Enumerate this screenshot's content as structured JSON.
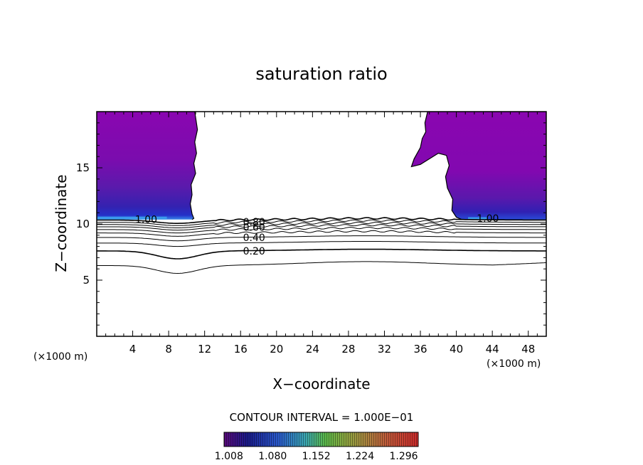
{
  "chart_data": {
    "type": "heatmap",
    "title": "saturation ratio",
    "xlabel": "X−coordinate",
    "ylabel": "Z−coordinate",
    "x_unit": "(×1000 m)",
    "y_unit": "(×1000 m)",
    "xlim": [
      0,
      50
    ],
    "ylim": [
      0,
      20
    ],
    "x_ticks": [
      4,
      8,
      12,
      16,
      20,
      24,
      28,
      32,
      36,
      40,
      44,
      48
    ],
    "y_ticks": [
      5,
      10,
      15
    ],
    "contour_interval_label": "CONTOUR INTERVAL = 1.000E−01",
    "contour_levels": [
      0.1,
      0.2,
      0.3,
      0.4,
      0.5,
      0.6,
      0.7,
      0.8,
      0.9,
      1.0
    ],
    "contour_labels": [
      {
        "text": "1.00",
        "x": 5.5,
        "z": 10.4
      },
      {
        "text": "0.80",
        "x": 17.5,
        "z": 10.2
      },
      {
        "text": "0.60",
        "x": 17.5,
        "z": 9.7
      },
      {
        "text": "0.40",
        "x": 17.5,
        "z": 8.8
      },
      {
        "text": "0.20",
        "x": 17.5,
        "z": 7.6
      },
      {
        "text": "1.00",
        "x": 43.5,
        "z": 10.5
      }
    ],
    "colorbar": {
      "ticks": [
        "1.008",
        "1.080",
        "1.152",
        "1.224",
        "1.296"
      ],
      "range": [
        1.0,
        1.32
      ]
    },
    "supersaturated_regions": [
      {
        "name": "left",
        "x_range": [
          0,
          10.8
        ],
        "z_range": [
          10.4,
          20
        ]
      },
      {
        "name": "right",
        "x_range": [
          35,
          50
        ],
        "z_range": [
          10.4,
          20
        ]
      }
    ],
    "colors": {
      "region_fill": "#8a06b0",
      "region_low": "#2222bb",
      "region_edge": "#3a86e8"
    }
  }
}
